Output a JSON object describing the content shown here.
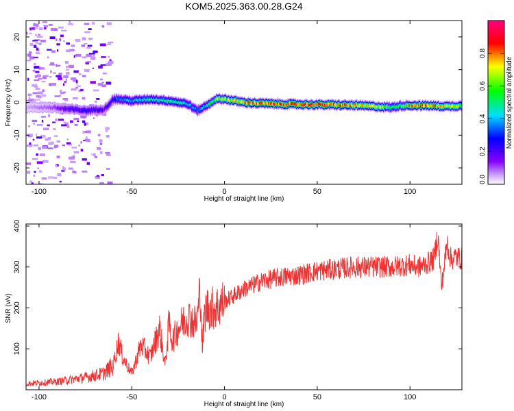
{
  "title": "KOM5.2025.363.00.28.G24",
  "chart_data": [
    {
      "type": "heatmap",
      "xlabel": "Height of straight line (km)",
      "ylabel": "Frequency (Hz)",
      "xlim": [
        -107,
        128
      ],
      "ylim": [
        -25,
        25
      ],
      "xticks": [
        -100,
        -50,
        0,
        50,
        100
      ],
      "yticks": [
        -20,
        -10,
        0,
        10,
        20
      ],
      "colorbar": {
        "label": "Normalized spectral amplitude",
        "range": [
          0,
          1
        ],
        "ticks": [
          0.0,
          0.2,
          0.4,
          0.6,
          0.8
        ],
        "colormap": "rainbow (purple-blue-cyan-green-yellow-red-magenta)"
      },
      "ridge": {
        "x": [
          -107,
          -95,
          -85,
          -75,
          -65,
          -60,
          -58,
          -50,
          -40,
          -30,
          -25,
          -20,
          -15,
          -10,
          -5,
          0,
          5,
          10,
          20,
          30,
          40,
          50,
          60,
          70,
          80,
          90,
          95,
          100,
          110,
          120,
          128
        ],
        "freq": [
          -1.5,
          -1.5,
          -2.0,
          -2.5,
          -2.0,
          1.0,
          1.0,
          0.5,
          1.0,
          0.5,
          0.0,
          -0.5,
          -2.5,
          -1.0,
          1.0,
          1.0,
          0.5,
          0.0,
          -0.3,
          -0.5,
          -0.6,
          -0.7,
          -0.8,
          -0.9,
          -1.2,
          -1.5,
          -1.0,
          -0.9,
          -1.0,
          -1.2,
          -1.0
        ],
        "amplitude": [
          0.05,
          0.1,
          0.2,
          0.25,
          0.2,
          0.3,
          0.35,
          0.4,
          0.45,
          0.5,
          0.45,
          0.4,
          0.35,
          0.45,
          0.6,
          0.65,
          0.7,
          0.75,
          0.8,
          0.85,
          0.8,
          0.85,
          0.8,
          0.75,
          0.7,
          0.5,
          0.55,
          0.75,
          0.8,
          0.7,
          0.6
        ]
      },
      "noise_region_x": [
        -107,
        -62
      ]
    },
    {
      "type": "line",
      "xlabel": "Height of straight line (km)",
      "ylabel": "SNR (v/v)",
      "xlim": [
        -107,
        128
      ],
      "ylim": [
        0,
        405
      ],
      "xticks": [
        -100,
        -50,
        0,
        50,
        100
      ],
      "yticks": [
        100,
        200,
        300,
        400
      ],
      "color": "#ee3333",
      "series": [
        {
          "x": [
            -107,
            -90,
            -75,
            -65,
            -60,
            -57,
            -55,
            -50,
            -45,
            -40,
            -35,
            -32,
            -30,
            -28,
            -25,
            -20,
            -15,
            -13,
            -12,
            -11,
            -10,
            -5,
            0,
            10,
            20,
            30,
            40,
            50,
            60,
            70,
            80,
            90,
            100,
            105,
            110,
            113,
            115,
            117,
            120,
            122,
            125,
            128
          ],
          "y": [
            15,
            20,
            30,
            40,
            60,
            120,
            80,
            40,
            110,
            80,
            150,
            60,
            160,
            120,
            150,
            180,
            160,
            250,
            100,
            170,
            200,
            200,
            215,
            245,
            265,
            275,
            280,
            290,
            295,
            300,
            300,
            300,
            305,
            300,
            310,
            320,
            380,
            250,
            360,
            320,
            325,
            320
          ]
        }
      ]
    }
  ]
}
